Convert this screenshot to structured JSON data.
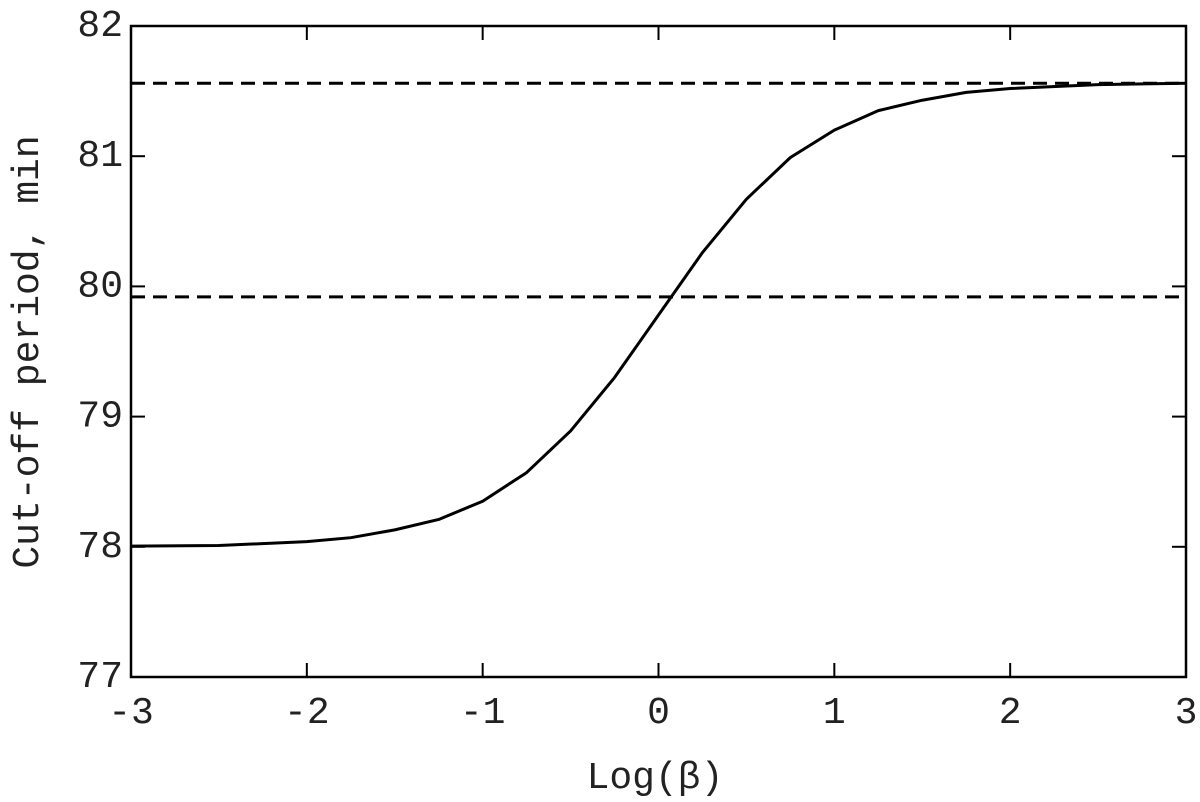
{
  "chart_data": {
    "type": "line",
    "xlabel": "Log(β)",
    "ylabel": "Cut-off period, min",
    "x": [
      -3,
      -2.5,
      -2,
      -1.75,
      -1.5,
      -1.25,
      -1,
      -0.75,
      -0.5,
      -0.25,
      0,
      0.25,
      0.5,
      0.75,
      1,
      1.25,
      1.5,
      1.75,
      2,
      2.5,
      3
    ],
    "series": [
      {
        "color": "#000000",
        "values": [
          78.005,
          78.01,
          78.04,
          78.07,
          78.13,
          78.21,
          78.35,
          78.57,
          78.89,
          79.3,
          79.78,
          80.26,
          80.67,
          80.99,
          81.2,
          81.35,
          81.43,
          81.49,
          81.52,
          81.55,
          81.56
        ]
      }
    ],
    "hlines": [
      81.56,
      79.92
    ],
    "xlim": [
      -3,
      3
    ],
    "xticks": [
      -3,
      -2,
      -1,
      0,
      1,
      2,
      3
    ],
    "ylim": [
      77,
      82
    ],
    "yticks": [
      77,
      78,
      79,
      80,
      81,
      82
    ]
  }
}
